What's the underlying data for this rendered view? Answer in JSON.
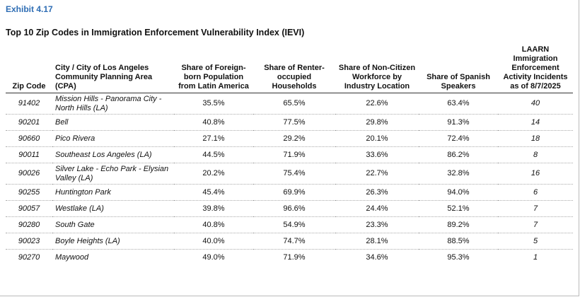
{
  "exhibit": "Exhibit 4.17",
  "title": "Top 10 Zip Codes in Immigration Enforcement Vulnerability Index (IEVI)",
  "table": {
    "header": [
      "Zip Code",
      "City / City of Los Angeles Community Planning Area (CPA)",
      "Share of Foreign-born Population from Latin America",
      "Share of Renter-occupied Households",
      "Share of Non-Citizen Workforce by Industry Location",
      "Share of Spanish Speakers",
      "LAARN Immigration Enforcement Activity Incidents as of 8/7/2025"
    ],
    "rows": [
      [
        "91402",
        "Mission Hills - Panorama City - North Hills (LA)",
        "35.5%",
        "65.5%",
        "22.6%",
        "63.4%",
        "40"
      ],
      [
        "90201",
        "Bell",
        "40.8%",
        "77.5%",
        "29.8%",
        "91.3%",
        "14"
      ],
      [
        "90660",
        "Pico Rivera",
        "27.1%",
        "29.2%",
        "20.1%",
        "72.4%",
        "18"
      ],
      [
        "90011",
        "Southeast Los Angeles (LA)",
        "44.5%",
        "71.9%",
        "33.6%",
        "86.2%",
        "8"
      ],
      [
        "90026",
        "Silver Lake - Echo Park - Elysian Valley (LA)",
        "20.2%",
        "75.4%",
        "22.7%",
        "32.8%",
        "16"
      ],
      [
        "90255",
        "Huntington Park",
        "45.4%",
        "69.9%",
        "26.3%",
        "94.0%",
        "6"
      ],
      [
        "90057",
        "Westlake (LA)",
        "39.8%",
        "96.6%",
        "24.4%",
        "52.1%",
        "7"
      ],
      [
        "90280",
        "South Gate",
        "40.8%",
        "54.9%",
        "23.3%",
        "89.2%",
        "7"
      ],
      [
        "90023",
        "Boyle Heights (LA)",
        "40.0%",
        "74.7%",
        "28.1%",
        "88.5%",
        "5"
      ],
      [
        "90270",
        "Maywood",
        "49.0%",
        "71.9%",
        "34.6%",
        "95.3%",
        "1"
      ]
    ]
  }
}
